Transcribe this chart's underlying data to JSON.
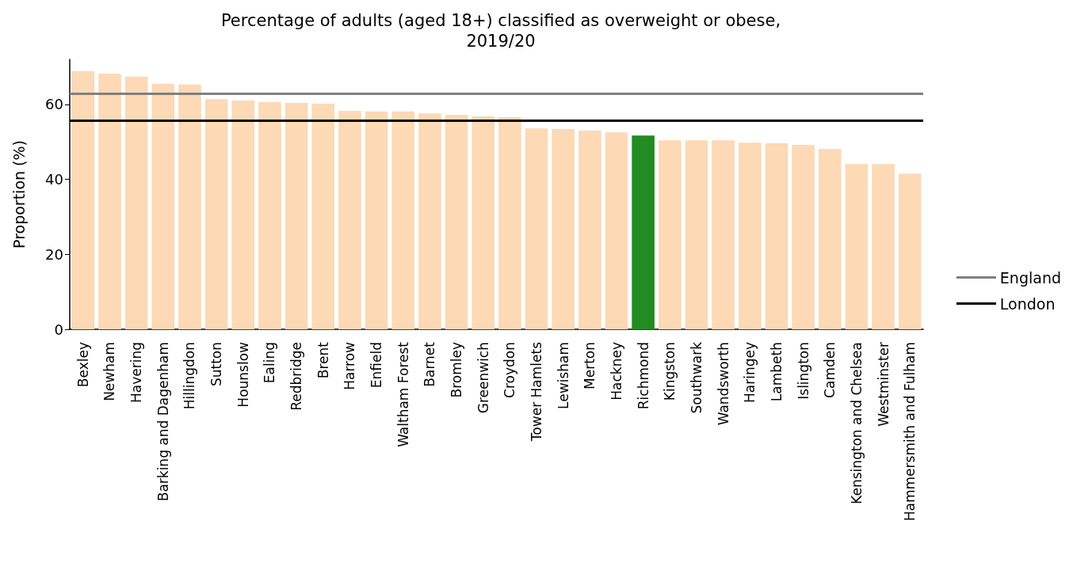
{
  "chart_data": {
    "type": "bar",
    "title": "Percentage of adults (aged 18+) classified as overweight or obese,\n2019/20",
    "ylabel": "Proportion (%)",
    "categories": [
      "Bexley",
      "Newham",
      "Havering",
      "Barking and Dagenham",
      "Hillingdon",
      "Sutton",
      "Hounslow",
      "Ealing",
      "Redbridge",
      "Brent",
      "Harrow",
      "Enfield",
      "Waltham Forest",
      "Barnet",
      "Bromley",
      "Greenwich",
      "Croydon",
      "Tower Hamlets",
      "Lewisham",
      "Merton",
      "Hackney",
      "Richmond",
      "Kingston",
      "Southwark",
      "Wandsworth",
      "Haringey",
      "Lambeth",
      "Islington",
      "Camden",
      "Kensington and Chelsea",
      "Westminster",
      "Hammersmith and Fulham"
    ],
    "values": [
      68.9,
      68.2,
      67.4,
      65.5,
      65.3,
      61.4,
      61.0,
      60.6,
      60.4,
      60.2,
      58.3,
      58.1,
      58.1,
      57.6,
      57.2,
      56.8,
      56.6,
      53.6,
      53.4,
      53.0,
      52.5,
      51.7,
      50.4,
      50.4,
      50.4,
      49.8,
      49.6,
      49.2,
      48.1,
      44.1,
      44.1,
      41.5
    ],
    "colors": [
      "#fdd9b5",
      "#fdd9b5",
      "#fdd9b5",
      "#fdd9b5",
      "#fdd9b5",
      "#fdd9b5",
      "#fdd9b5",
      "#fdd9b5",
      "#fdd9b5",
      "#fdd9b5",
      "#fdd9b5",
      "#fdd9b5",
      "#fdd9b5",
      "#fdd9b5",
      "#fdd9b5",
      "#fdd9b5",
      "#fdd9b5",
      "#fdd9b5",
      "#fdd9b5",
      "#fdd9b5",
      "#fdd9b5",
      "#228b22",
      "#fdd9b5",
      "#fdd9b5",
      "#fdd9b5",
      "#fdd9b5",
      "#fdd9b5",
      "#fdd9b5",
      "#fdd9b5",
      "#fdd9b5",
      "#fdd9b5",
      "#fdd9b5"
    ],
    "ylim": [
      0,
      72
    ],
    "yticks": [
      0,
      20,
      40,
      60
    ],
    "ref_lines": [
      {
        "axis": "y",
        "value": 62.9,
        "label": "England",
        "color": "#808080"
      },
      {
        "axis": "y",
        "value": 55.7,
        "label": "London",
        "color": "#000000"
      }
    ],
    "grid": false,
    "legend": "right"
  }
}
